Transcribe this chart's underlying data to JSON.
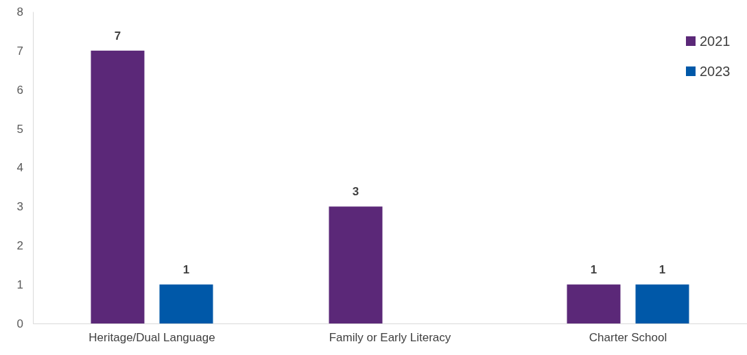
{
  "chart_data": {
    "type": "bar",
    "categories": [
      "Heritage/Dual Language",
      "Family or Early Literacy",
      "Charter School"
    ],
    "series": [
      {
        "name": "2021",
        "color": "#5b2878",
        "values": [
          7,
          3,
          1
        ]
      },
      {
        "name": "2023",
        "color": "#0058a8",
        "values": [
          1,
          null,
          1
        ]
      }
    ],
    "ylim": [
      0,
      8
    ],
    "yticks": [
      0,
      1,
      2,
      3,
      4,
      5,
      6,
      7,
      8
    ],
    "grid": false,
    "legend": "top right",
    "data_labels": true
  }
}
